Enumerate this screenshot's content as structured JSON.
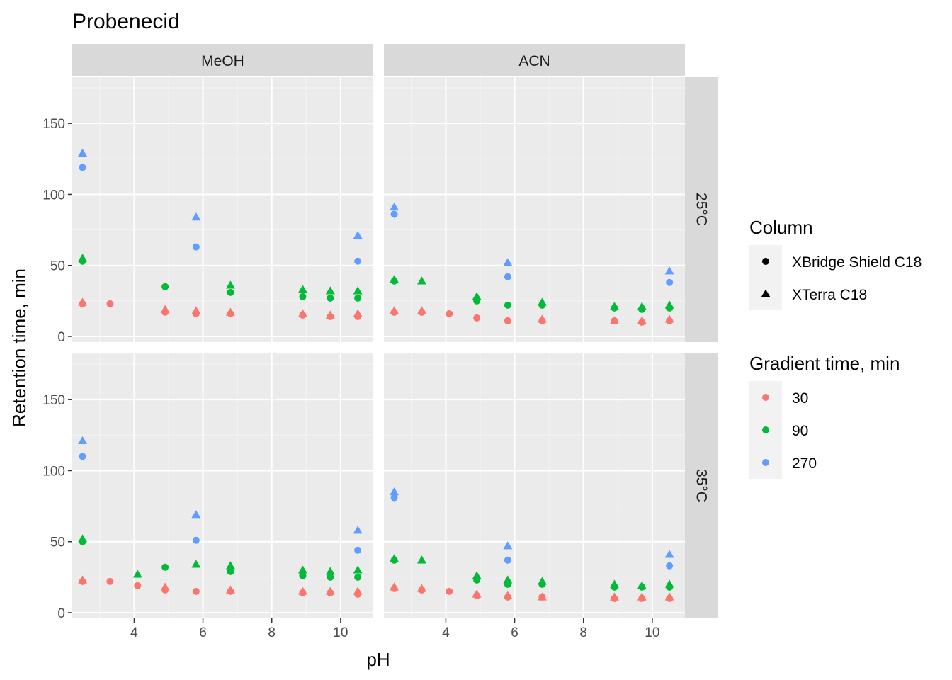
{
  "chart_data": {
    "type": "scatter",
    "title": "Probenecid",
    "xlabel": "pH",
    "ylabel": "Retention time, min",
    "xlim": [
      2.2,
      10.95
    ],
    "ylim": [
      -4,
      183
    ],
    "x_ticks": [
      4,
      6,
      8,
      10
    ],
    "y_ticks": [
      0,
      50,
      100,
      150
    ],
    "col_facets": [
      "MeOH",
      "ACN"
    ],
    "row_facets": [
      "25°C",
      "35°C"
    ],
    "grid": true,
    "legend_position": "right",
    "colors": {
      "30": "#F8766D",
      "90": "#00BA38",
      "270": "#619CFF"
    },
    "legends": [
      {
        "title": "Column",
        "items": [
          {
            "label": "XBridge Shield C18",
            "shape": "circle"
          },
          {
            "label": "XTerra C18",
            "shape": "triangle"
          }
        ]
      },
      {
        "title": "Gradient time, min",
        "items": [
          {
            "label": "30",
            "color": "#F8766D"
          },
          {
            "label": "90",
            "color": "#00BA38"
          },
          {
            "label": "270",
            "color": "#619CFF"
          }
        ]
      }
    ],
    "panels": [
      {
        "facet_col": "MeOH",
        "facet_row": "25°C",
        "series": [
          {
            "column": "XBridge Shield C18",
            "gradient": "30",
            "points": [
              [
                2.5,
                23
              ],
              [
                3.3,
                23
              ],
              [
                4.9,
                17
              ],
              [
                5.8,
                16
              ],
              [
                6.8,
                16
              ],
              [
                8.9,
                15
              ],
              [
                9.7,
                14
              ],
              [
                10.5,
                14
              ]
            ]
          },
          {
            "column": "XTerra C18",
            "gradient": "30",
            "points": [
              [
                2.5,
                24
              ],
              [
                4.9,
                19
              ],
              [
                5.8,
                18
              ],
              [
                6.8,
                17
              ],
              [
                8.9,
                16
              ],
              [
                9.7,
                15
              ],
              [
                10.5,
                16
              ]
            ]
          },
          {
            "column": "XBridge Shield C18",
            "gradient": "90",
            "points": [
              [
                2.5,
                53
              ],
              [
                4.9,
                35
              ],
              [
                6.8,
                31
              ],
              [
                8.9,
                28
              ],
              [
                9.7,
                27
              ],
              [
                10.5,
                27
              ]
            ]
          },
          {
            "column": "XTerra C18",
            "gradient": "90",
            "points": [
              [
                2.5,
                55
              ],
              [
                6.8,
                36
              ],
              [
                8.9,
                33
              ],
              [
                9.7,
                32
              ],
              [
                10.5,
                32
              ]
            ]
          },
          {
            "column": "XBridge Shield C18",
            "gradient": "270",
            "points": [
              [
                2.5,
                119
              ],
              [
                5.8,
                63
              ],
              [
                10.5,
                53
              ]
            ]
          },
          {
            "column": "XTerra C18",
            "gradient": "270",
            "points": [
              [
                2.5,
                129
              ],
              [
                5.8,
                84
              ],
              [
                10.5,
                71
              ]
            ]
          }
        ]
      },
      {
        "facet_col": "ACN",
        "facet_row": "25°C",
        "series": [
          {
            "column": "XBridge Shield C18",
            "gradient": "30",
            "points": [
              [
                2.5,
                17
              ],
              [
                3.3,
                17
              ],
              [
                4.1,
                16
              ],
              [
                4.9,
                13
              ],
              [
                5.8,
                11
              ],
              [
                6.8,
                11
              ],
              [
                8.9,
                11
              ],
              [
                9.7,
                10
              ],
              [
                10.5,
                11
              ]
            ]
          },
          {
            "column": "XTerra C18",
            "gradient": "30",
            "points": [
              [
                2.5,
                18
              ],
              [
                3.3,
                18
              ],
              [
                6.8,
                12
              ],
              [
                8.9,
                11
              ],
              [
                9.7,
                11
              ],
              [
                10.5,
                12
              ]
            ]
          },
          {
            "column": "XBridge Shield C18",
            "gradient": "90",
            "points": [
              [
                2.5,
                39
              ],
              [
                4.9,
                25
              ],
              [
                5.8,
                22
              ],
              [
                6.8,
                22
              ],
              [
                8.9,
                20
              ],
              [
                9.7,
                19
              ],
              [
                10.5,
                20
              ]
            ]
          },
          {
            "column": "XTerra C18",
            "gradient": "90",
            "points": [
              [
                2.5,
                40
              ],
              [
                3.3,
                39
              ],
              [
                4.9,
                28
              ],
              [
                6.8,
                24
              ],
              [
                8.9,
                21
              ],
              [
                9.7,
                21
              ],
              [
                10.5,
                22
              ]
            ]
          },
          {
            "column": "XBridge Shield C18",
            "gradient": "270",
            "points": [
              [
                2.5,
                86
              ],
              [
                5.8,
                42
              ],
              [
                10.5,
                38
              ]
            ]
          },
          {
            "column": "XTerra C18",
            "gradient": "270",
            "points": [
              [
                2.5,
                91
              ],
              [
                5.8,
                52
              ],
              [
                10.5,
                46
              ]
            ]
          }
        ]
      },
      {
        "facet_col": "MeOH",
        "facet_row": "35°C",
        "series": [
          {
            "column": "XBridge Shield C18",
            "gradient": "30",
            "points": [
              [
                2.5,
                22
              ],
              [
                3.3,
                22
              ],
              [
                4.1,
                19
              ],
              [
                4.9,
                16
              ],
              [
                5.8,
                15
              ],
              [
                6.8,
                15
              ],
              [
                8.9,
                14
              ],
              [
                9.7,
                14
              ],
              [
                10.5,
                13
              ]
            ]
          },
          {
            "column": "XTerra C18",
            "gradient": "30",
            "points": [
              [
                2.5,
                23
              ],
              [
                4.9,
                18
              ],
              [
                6.8,
                16
              ],
              [
                8.9,
                15
              ],
              [
                9.7,
                15
              ],
              [
                10.5,
                15
              ]
            ]
          },
          {
            "column": "XBridge Shield C18",
            "gradient": "90",
            "points": [
              [
                2.5,
                50
              ],
              [
                4.9,
                32
              ],
              [
                6.8,
                29
              ],
              [
                8.9,
                26
              ],
              [
                9.7,
                25
              ],
              [
                10.5,
                25
              ]
            ]
          },
          {
            "column": "XTerra C18",
            "gradient": "90",
            "points": [
              [
                2.5,
                52
              ],
              [
                4.1,
                27
              ],
              [
                5.8,
                34
              ],
              [
                6.8,
                33
              ],
              [
                8.9,
                30
              ],
              [
                9.7,
                29
              ],
              [
                10.5,
                30
              ]
            ]
          },
          {
            "column": "XBridge Shield C18",
            "gradient": "270",
            "points": [
              [
                2.5,
                110
              ],
              [
                5.8,
                51
              ],
              [
                10.5,
                44
              ]
            ]
          },
          {
            "column": "XTerra C18",
            "gradient": "270",
            "points": [
              [
                2.5,
                121
              ],
              [
                5.8,
                69
              ],
              [
                10.5,
                58
              ]
            ]
          }
        ]
      },
      {
        "facet_col": "ACN",
        "facet_row": "35°C",
        "series": [
          {
            "column": "XBridge Shield C18",
            "gradient": "30",
            "points": [
              [
                2.5,
                17
              ],
              [
                3.3,
                16
              ],
              [
                4.1,
                15
              ],
              [
                4.9,
                12
              ],
              [
                5.8,
                11
              ],
              [
                6.8,
                11
              ],
              [
                8.9,
                10
              ],
              [
                9.7,
                10
              ],
              [
                10.5,
                10
              ]
            ]
          },
          {
            "column": "XTerra C18",
            "gradient": "30",
            "points": [
              [
                2.5,
                18
              ],
              [
                3.3,
                17
              ],
              [
                4.9,
                13
              ],
              [
                5.8,
                12
              ],
              [
                6.8,
                11
              ],
              [
                8.9,
                11
              ],
              [
                9.7,
                11
              ],
              [
                10.5,
                11
              ]
            ]
          },
          {
            "column": "XBridge Shield C18",
            "gradient": "90",
            "points": [
              [
                2.5,
                37
              ],
              [
                4.9,
                23
              ],
              [
                5.8,
                20
              ],
              [
                6.8,
                20
              ],
              [
                8.9,
                18
              ],
              [
                9.7,
                18
              ],
              [
                10.5,
                18
              ]
            ]
          },
          {
            "column": "XTerra C18",
            "gradient": "90",
            "points": [
              [
                2.5,
                38
              ],
              [
                3.3,
                37
              ],
              [
                4.9,
                26
              ],
              [
                5.8,
                23
              ],
              [
                6.8,
                22
              ],
              [
                8.9,
                20
              ],
              [
                9.7,
                19
              ],
              [
                10.5,
                20
              ]
            ]
          },
          {
            "column": "XBridge Shield C18",
            "gradient": "270",
            "points": [
              [
                2.5,
                81
              ],
              [
                5.8,
                37
              ],
              [
                10.5,
                33
              ]
            ]
          },
          {
            "column": "XTerra C18",
            "gradient": "270",
            "points": [
              [
                2.5,
                85
              ],
              [
                5.8,
                47
              ],
              [
                10.5,
                41
              ]
            ]
          }
        ]
      }
    ]
  }
}
